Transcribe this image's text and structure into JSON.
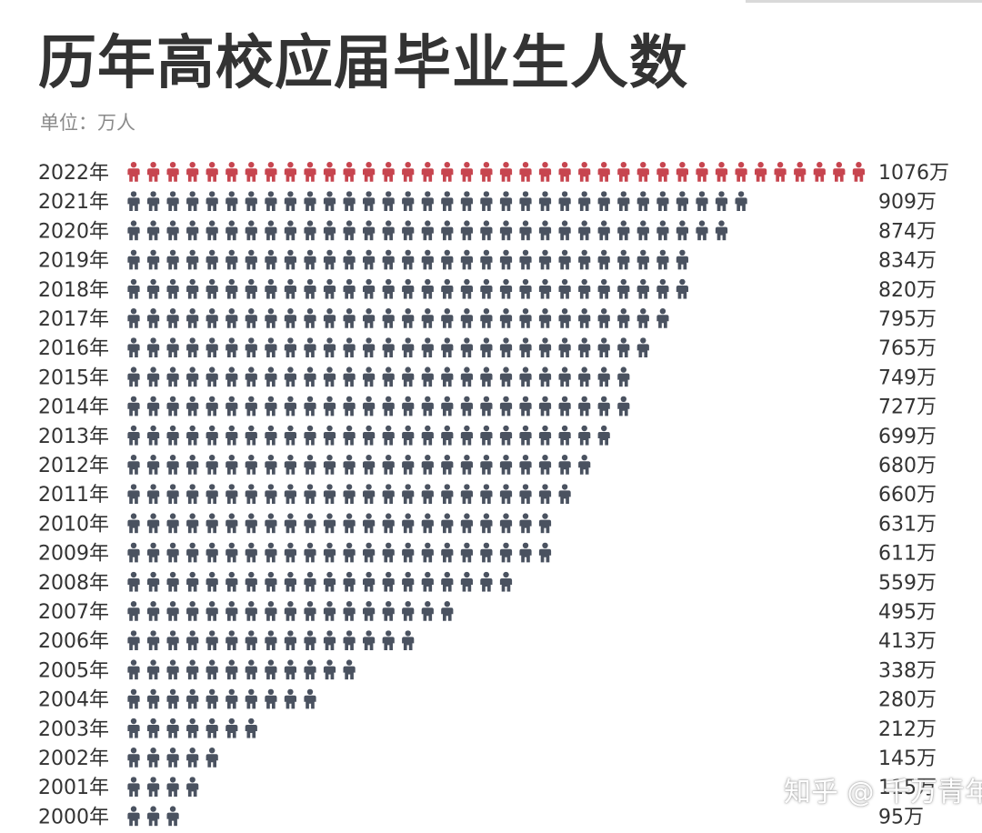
{
  "title": "历年高校应届毕业生人数",
  "unit_label": "单位：万人",
  "watermark": "知乎 @ 千万青年",
  "colors": {
    "highlight": "#c7454f",
    "normal": "#4a5260",
    "text": "#333333"
  },
  "icon": "person-icon",
  "chart_data": {
    "type": "pictograph",
    "title": "历年高校应届毕业生人数",
    "unit": "万人",
    "value_suffix": "万",
    "categories": [
      "2022年",
      "2021年",
      "2020年",
      "2019年",
      "2018年",
      "2017年",
      "2016年",
      "2015年",
      "2014年",
      "2013年",
      "2012年",
      "2011年",
      "2010年",
      "2009年",
      "2008年",
      "2007年",
      "2006年",
      "2005年",
      "2004年",
      "2003年",
      "2002年",
      "2001年",
      "2000年"
    ],
    "values": [
      1076,
      909,
      874,
      834,
      820,
      795,
      765,
      749,
      727,
      699,
      680,
      660,
      631,
      611,
      559,
      495,
      413,
      338,
      280,
      212,
      145,
      115,
      95
    ],
    "icon_counts": [
      38,
      32,
      31,
      29,
      29,
      28,
      27,
      26,
      26,
      25,
      24,
      23,
      22,
      22,
      20,
      17,
      15,
      12,
      10,
      7,
      5,
      4,
      3
    ],
    "highlight_category": "2022年"
  }
}
